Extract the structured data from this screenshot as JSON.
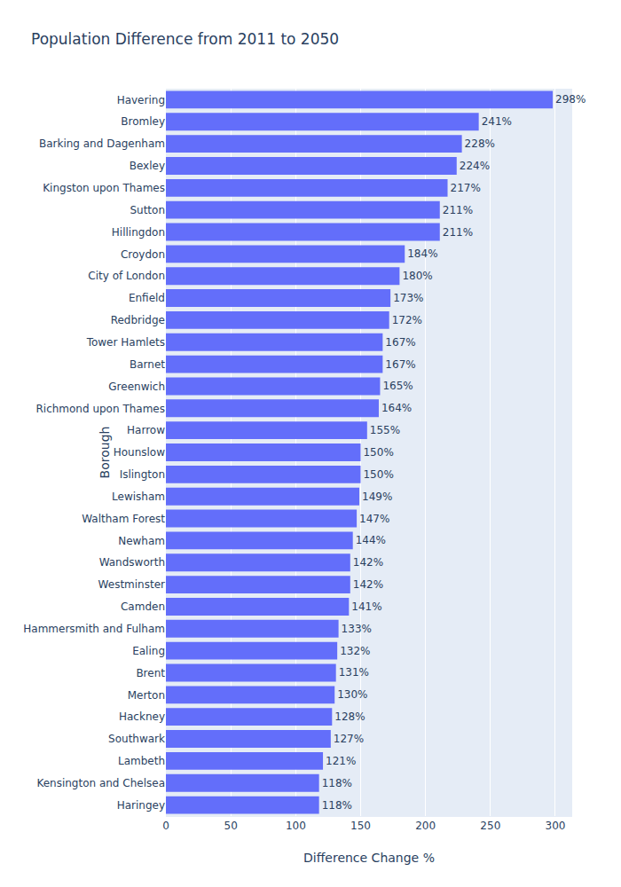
{
  "chart_data": {
    "type": "bar",
    "orientation": "horizontal",
    "title": "Population Difference from 2011 to 2050",
    "x_label": "Difference Change %",
    "y_label": "Borough",
    "categories": [
      "Havering",
      "Bromley",
      "Barking and Dagenham",
      "Bexley",
      "Kingston upon Thames",
      "Sutton",
      "Hillingdon",
      "Croydon",
      "City of London",
      "Enfield",
      "Redbridge",
      "Tower Hamlets",
      "Barnet",
      "Greenwich",
      "Richmond upon Thames",
      "Harrow",
      "Hounslow",
      "Islington",
      "Lewisham",
      "Waltham Forest",
      "Newham",
      "Wandsworth",
      "Westminster",
      "Camden",
      "Hammersmith and Fulham",
      "Ealing",
      "Brent",
      "Merton",
      "Hackney",
      "Southwark",
      "Lambeth",
      "Kensington and Chelsea",
      "Haringey"
    ],
    "values": [
      298,
      241,
      228,
      224,
      217,
      211,
      211,
      184,
      180,
      173,
      172,
      167,
      167,
      165,
      164,
      155,
      150,
      150,
      149,
      147,
      144,
      142,
      142,
      141,
      133,
      132,
      131,
      130,
      128,
      127,
      121,
      118,
      118
    ],
    "value_labels": [
      "298%",
      "241%",
      "228%",
      "224%",
      "217%",
      "211%",
      "211%",
      "184%",
      "180%",
      "173%",
      "172%",
      "167%",
      "167%",
      "165%",
      "164%",
      "155%",
      "150%",
      "150%",
      "149%",
      "147%",
      "144%",
      "142%",
      "142%",
      "141%",
      "133%",
      "132%",
      "131%",
      "130%",
      "128%",
      "127%",
      "121%",
      "118%",
      "118%"
    ],
    "data_labels": true,
    "color": "#636efa",
    "xlim": [
      0,
      313
    ],
    "xticks": [
      0,
      50,
      100,
      150,
      200,
      250,
      300
    ],
    "grid": true
  }
}
